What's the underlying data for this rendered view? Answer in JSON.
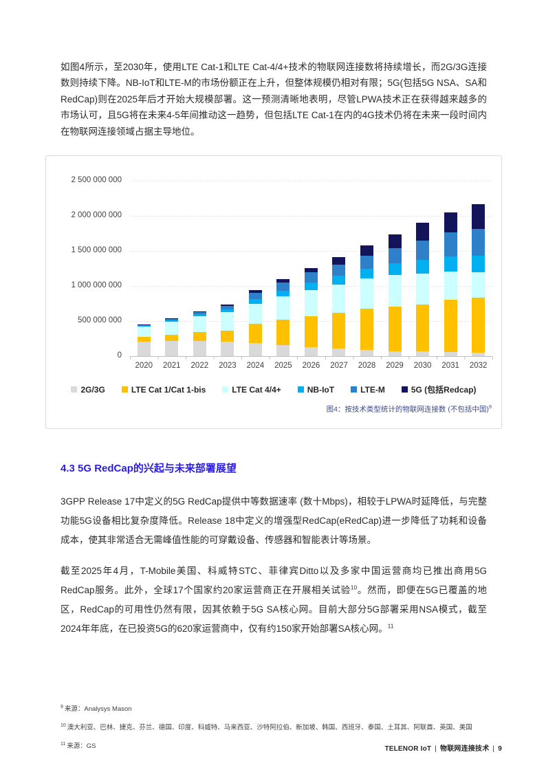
{
  "intro": {
    "text": "如图4所示，至2030年，使用LTE Cat-1和LTE Cat-4/4+技术的物联网连接数将持续增长，而2G/3G连接数则持续下降。NB-IoT和LTE-M的市场份额正在上升，但整体规模仍相对有限；5G(包括5G NSA、SA和RedCap)则在2025年后才开始大规模部署。这一预测清晰地表明，尽管LPWA技术正在获得越来越多的市场认可，且5G将在未来4-5年间推动这一趋势，但包括LTE Cat-1在内的4G技术仍将在未来一段时间内在物联网连接领域占据主导地位。"
  },
  "chart_data": {
    "type": "bar",
    "stacked": true,
    "caption": "图4：按技术类型统计的物联网连接数 (不包括中国)",
    "caption_sup": "9",
    "years": [
      "2020",
      "2021",
      "2022",
      "2023",
      "2024",
      "2025",
      "2026",
      "2027",
      "2028",
      "2029",
      "2030",
      "2031",
      "2032"
    ],
    "y_max_millions": 2500,
    "y_ticks": [
      {
        "value_millions": 2500,
        "label": "2 500 000 000"
      },
      {
        "value_millions": 2000,
        "label": "2 000 000 000"
      },
      {
        "value_millions": 1500,
        "label": "1 500 000 000"
      },
      {
        "value_millions": 1000,
        "label": "1 000 000 000"
      },
      {
        "value_millions": 500,
        "label": "500 000 000"
      },
      {
        "value_millions": 0,
        "label": "0"
      }
    ],
    "grid": "dotted-horizontal",
    "legend_position": "bottom-center",
    "series": [
      {
        "name": "2G/3G",
        "color": "#D9D9D9",
        "values_millions": [
          205,
          215,
          212,
          205,
          185,
          160,
          125,
          105,
          85,
          70,
          65,
          56,
          52
        ]
      },
      {
        "name": "LTE Cat 1/Cat 1-bis",
        "color": "#FFC000",
        "values_millions": [
          70,
          90,
          128,
          160,
          280,
          355,
          445,
          515,
          595,
          640,
          670,
          750,
          785
        ]
      },
      {
        "name": "LTE Cat 4/4+",
        "color": "#CCFFFF",
        "values_millions": [
          150,
          190,
          230,
          260,
          285,
          340,
          375,
          400,
          425,
          445,
          440,
          400,
          360
        ]
      },
      {
        "name": "NB-IoT",
        "color": "#00B0F0",
        "values_millions": [
          12,
          20,
          30,
          45,
          65,
          78,
          100,
          125,
          145,
          165,
          195,
          215,
          232
        ]
      },
      {
        "name": "LTE-M",
        "color": "#2E80C8",
        "values_millions": [
          8,
          15,
          25,
          45,
          90,
          112,
          150,
          160,
          180,
          215,
          275,
          340,
          388
        ]
      },
      {
        "name": "5G (包括Redcap)",
        "color": "#131459",
        "values_millions": [
          5,
          10,
          15,
          25,
          40,
          55,
          60,
          105,
          150,
          200,
          255,
          290,
          353
        ]
      }
    ]
  },
  "section": {
    "heading": "4.3 5G RedCap的兴起与未来部署展望",
    "p1": "3GPP Release 17中定义的5G RedCap提供中等数据速率 (数十Mbps)，相较于LPWA时延降低，与完整功能5G设备相比复杂度降低。Release 18中定义的增强型RedCap(eRedCap)进一步降低了功耗和设备成本，使其非常适合无需峰值性能的可穿戴设备、传感器和智能表计等场景。",
    "p2a": "截至2025年4月，T-Mobile美国、科威特STC、菲律宾Ditto以及多家中国运营商均已推出商用5G RedCap服务。此外，全球17个国家约20家运营商正在开展相关试验",
    "p2sup1": "10",
    "p2b": "。然而，即便在5G已覆盖的地区，RedCap的可用性仍然有限，因其依赖于5G SA核心网。目前大部分5G部署采用NSA模式，截至2024年年底，在已投资5G的620家运营商中，仅有约150家开始部署SA核心网。",
    "p2sup2": "11"
  },
  "footnotes": [
    {
      "sup": "9",
      "text": "来源：Analysys Mason"
    },
    {
      "sup": "10",
      "text": "澳大利亚、巴林、捷克、芬兰、德国、印度、科威特、马来西亚、沙特阿拉伯、新加坡、韩国、西班牙、泰国、土耳其、阿联酋、英国、美国"
    },
    {
      "sup": "11",
      "text": "来源：GS"
    }
  ],
  "footer": {
    "brand": "TELENOR IoT",
    "separator": "|",
    "section": "物联网连接技术",
    "page_number": "9"
  }
}
